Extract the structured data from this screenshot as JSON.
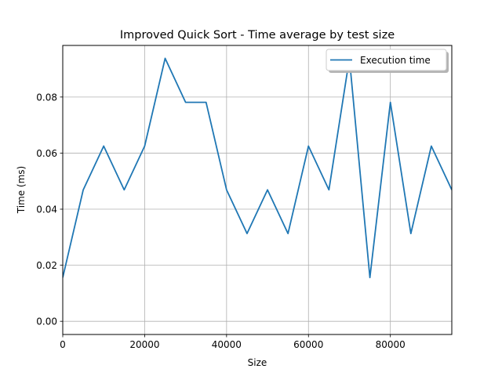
{
  "chart_data": {
    "type": "line",
    "title": "Improved Quick Sort - Time average by test size",
    "xlabel": "Size",
    "ylabel": "Time (ms)",
    "xlim": [
      0,
      95000
    ],
    "ylim": [
      -0.0047,
      0.0984
    ],
    "grid": true,
    "legend_position": "top-right",
    "x_ticks": [
      0,
      20000,
      40000,
      60000,
      80000
    ],
    "x_tick_labels": [
      "0",
      "20000",
      "40000",
      "60000",
      "80000"
    ],
    "y_ticks": [
      0.0,
      0.02,
      0.04,
      0.06,
      0.08
    ],
    "y_tick_labels": [
      "0.00",
      "0.02",
      "0.04",
      "0.06",
      "0.08"
    ],
    "series": [
      {
        "name": "Execution time",
        "color": "#1f77b4",
        "x": [
          0,
          5000,
          10000,
          15000,
          20000,
          25000,
          30000,
          35000,
          40000,
          45000,
          50000,
          55000,
          60000,
          65000,
          70000,
          75000,
          80000,
          85000,
          90000,
          95000
        ],
        "y": [
          0.0156,
          0.0469,
          0.0625,
          0.0469,
          0.0625,
          0.0938,
          0.0781,
          0.0781,
          0.0469,
          0.0313,
          0.0469,
          0.0313,
          0.0625,
          0.0469,
          0.0938,
          0.0156,
          0.0781,
          0.0313,
          0.0625,
          0.0469
        ]
      }
    ]
  }
}
